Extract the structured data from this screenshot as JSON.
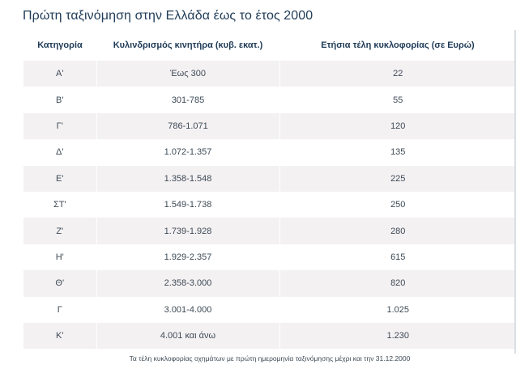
{
  "title": "Πρώτη ταξινόμηση στην Ελλάδα έως το έτος 2000",
  "table": {
    "headers": [
      "Κατηγορία",
      "Κυλινδρισμός κινητήρα (κυβ. εκατ.)",
      "Ετήσια τέλη κυκλοφορίας (σε Ευρώ)"
    ],
    "rows": [
      [
        "Α'",
        "Έως 300",
        "22"
      ],
      [
        "Β'",
        "301-785",
        "55"
      ],
      [
        "Γ'",
        "786-1.071",
        "120"
      ],
      [
        "Δ'",
        "1.072-1.357",
        "135"
      ],
      [
        "Ε'",
        "1.358-1.548",
        "225"
      ],
      [
        "ΣΤ'",
        "1.549-1.738",
        "250"
      ],
      [
        "Ζ'",
        "1.739-1.928",
        "280"
      ],
      [
        "Η'",
        "1.929-2.357",
        "615"
      ],
      [
        "Θ'",
        "2.358-3.000",
        "820"
      ],
      [
        "Γ",
        "3.001-4.000",
        "1.025"
      ],
      [
        "Κ'",
        "4.001 και άνω",
        "1.230"
      ]
    ]
  },
  "footnote": "Τα τέλη κυκλοφορίας οχημάτων με πρώτη ημερομηνία ταξινόμησης μέχρι και την 31.12.2000",
  "colors": {
    "title": "#1f3b57",
    "text": "#3d4a55",
    "row_stripe": "#f4f1f3"
  }
}
